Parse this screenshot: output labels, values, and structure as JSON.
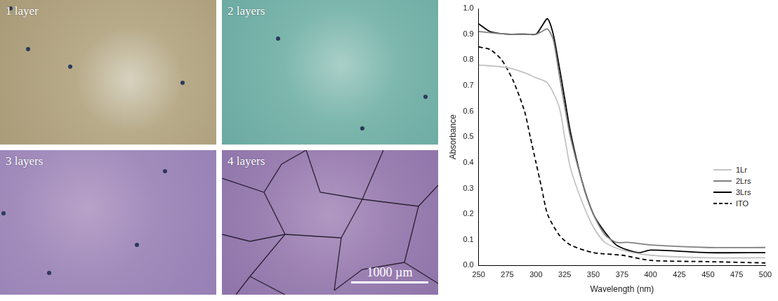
{
  "images": {
    "panels": [
      {
        "label": "1 layer"
      },
      {
        "label": "2 layers"
      },
      {
        "label": "3 layers"
      },
      {
        "label": "4 layers"
      }
    ],
    "scale_bar": "1000 µm"
  },
  "chart_data": {
    "type": "line",
    "x_label": "Wavelength (nm)",
    "y_label": "Absorbance",
    "xlim": [
      250,
      500
    ],
    "xticks": [
      250,
      275,
      300,
      325,
      350,
      375,
      400,
      425,
      450,
      475,
      500
    ],
    "ylim": [
      0,
      1.0
    ],
    "yticks": [
      {
        "value": 0,
        "label": "0.0"
      },
      0.1,
      0.2,
      0.3,
      0.4,
      0.5,
      0.6,
      0.7,
      0.8,
      0.9,
      {
        "value": 1.0,
        "label": "1.0"
      }
    ],
    "grid": false,
    "legend": "right",
    "series": [
      {
        "name": "1Lr",
        "color": "#c4c4c4",
        "line_style": "solid",
        "marker": "none",
        "x": [
          250,
          275,
          290,
          300,
          310,
          320,
          325,
          330,
          340,
          350,
          360,
          375,
          400,
          450,
          500
        ],
        "values": [
          0.78,
          0.77,
          0.75,
          0.73,
          0.71,
          0.62,
          0.5,
          0.38,
          0.25,
          0.15,
          0.09,
          0.06,
          0.04,
          0.03,
          0.03
        ]
      },
      {
        "name": "2Lrs",
        "color": "#808080",
        "line_style": "solid",
        "marker": "none",
        "x": [
          250,
          275,
          300,
          305,
          310,
          315,
          320,
          325,
          330,
          340,
          350,
          360,
          370,
          380,
          400,
          450,
          500
        ],
        "values": [
          0.91,
          0.9,
          0.9,
          0.91,
          0.92,
          0.88,
          0.75,
          0.62,
          0.5,
          0.33,
          0.2,
          0.12,
          0.09,
          0.09,
          0.08,
          0.07,
          0.07
        ]
      },
      {
        "name": "3Lrs",
        "color": "#000000",
        "line_style": "solid",
        "marker": "none",
        "x": [
          250,
          260,
          275,
          290,
          300,
          305,
          310,
          315,
          320,
          325,
          330,
          340,
          350,
          360,
          370,
          380,
          390,
          400,
          450,
          500
        ],
        "values": [
          0.94,
          0.91,
          0.9,
          0.9,
          0.9,
          0.93,
          0.96,
          0.9,
          0.78,
          0.65,
          0.52,
          0.33,
          0.2,
          0.13,
          0.08,
          0.06,
          0.05,
          0.06,
          0.05,
          0.05
        ]
      },
      {
        "name": "ITO",
        "color": "#000000",
        "line_style": "dashed",
        "marker": "none",
        "x": [
          250,
          260,
          270,
          280,
          290,
          295,
          300,
          305,
          310,
          320,
          330,
          350,
          375,
          400,
          450,
          500
        ],
        "values": [
          0.85,
          0.84,
          0.8,
          0.72,
          0.6,
          0.5,
          0.4,
          0.3,
          0.2,
          0.12,
          0.08,
          0.05,
          0.04,
          0.02,
          0.015,
          0.01
        ]
      }
    ]
  }
}
